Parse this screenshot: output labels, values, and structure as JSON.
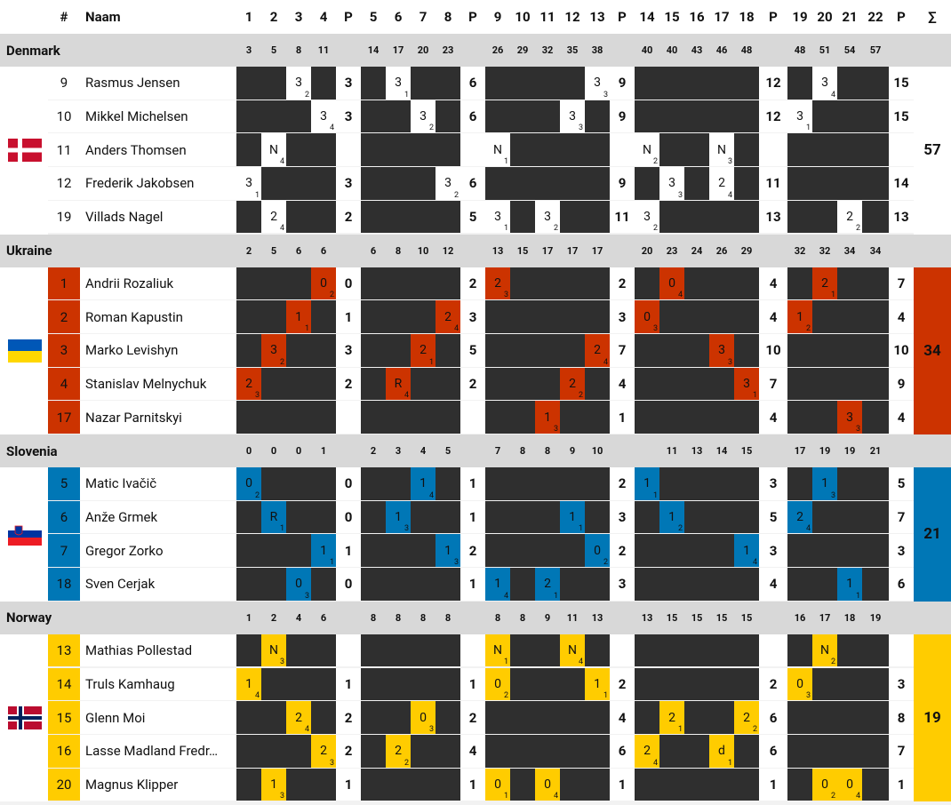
{
  "header": {
    "num_label": "#",
    "name_label": "Naam",
    "columns": [
      "1",
      "2",
      "3",
      "4",
      "P",
      "5",
      "6",
      "7",
      "8",
      "P",
      "9",
      "10",
      "11",
      "12",
      "13",
      "P",
      "14",
      "15",
      "16",
      "17",
      "18",
      "P",
      "19",
      "20",
      "21",
      "22",
      "P",
      "∑"
    ]
  },
  "teams": [
    {
      "name": "Denmark",
      "color": "#ffffff",
      "flag": "denmark-flag",
      "cumulative": [
        "3",
        "5",
        "8",
        "11",
        "",
        "14",
        "17",
        "20",
        "23",
        "",
        "26",
        "29",
        "32",
        "35",
        "38",
        "",
        "40",
        "40",
        "43",
        "46",
        "48",
        "",
        "48",
        "51",
        "54",
        "57",
        ""
      ],
      "total": "57",
      "players": [
        {
          "num": "9",
          "name": "Rasmus Jensen",
          "cells": {
            "2": [
              "3",
              "2"
            ],
            "5": [
              "3",
              "1"
            ],
            "12": [
              "3",
              "3"
            ],
            "19": [
              "3",
              "4"
            ],
            "25": [
              "3",
              "4"
            ]
          },
          "p": [
            "3",
            "6",
            "9",
            "12",
            "15"
          ]
        },
        {
          "num": "10",
          "name": "Mikkel Michelsen",
          "cells": {
            "3": [
              "3",
              "4"
            ],
            "6": [
              "3",
              "2"
            ],
            "11": [
              "3",
              "3"
            ],
            "18": [
              "3",
              "1"
            ],
            "24": [
              "3",
              "1"
            ]
          },
          "p": [
            "3",
            "6",
            "9",
            "12",
            "15"
          ]
        },
        {
          "num": "11",
          "name": "Anders Thomsen",
          "cells": {
            "1": [
              "N",
              "4"
            ],
            "8": [
              "N",
              "1"
            ],
            "13": [
              "N",
              "2"
            ],
            "16": [
              "N",
              "3"
            ],
            "22": [
              "N",
              "3"
            ]
          },
          "p": [
            "",
            "",
            "",
            "",
            ""
          ]
        },
        {
          "num": "12",
          "name": "Frederik Jakobsen",
          "cells": {
            "0": [
              "3",
              "1"
            ],
            "7": [
              "3",
              "2"
            ],
            "14": [
              "3",
              "3"
            ],
            "16": [
              "2",
              "4"
            ],
            "23": [
              "3",
              "2"
            ]
          },
          "p": [
            "3",
            "6",
            "9",
            "11",
            "14"
          ]
        },
        {
          "num": "19",
          "name": "Villads Nagel",
          "cells": {
            "1": [
              "2",
              "4"
            ],
            "8": [
              "3",
              "1"
            ],
            "10": [
              "3",
              "2"
            ],
            "13": [
              "3",
              "2"
            ],
            "20": [
              "2",
              "2"
            ]
          },
          "p": [
            "2",
            "5",
            "11",
            "13",
            "13"
          ]
        }
      ]
    },
    {
      "name": "Ukraine",
      "color": "#cc3300",
      "flag": "ukraine-flag",
      "cumulative": [
        "2",
        "5",
        "6",
        "6",
        "",
        "6",
        "8",
        "10",
        "12",
        "",
        "13",
        "15",
        "17",
        "17",
        "17",
        "",
        "20",
        "23",
        "24",
        "26",
        "29",
        "",
        "32",
        "32",
        "34",
        "34",
        ""
      ],
      "total": "34",
      "players": [
        {
          "num": "1",
          "name": "Andrii Rozaliuk",
          "cells": {
            "3": [
              "0",
              "2"
            ],
            "8": [
              "2",
              "3"
            ],
            "14": [
              "0",
              "4"
            ],
            "19": [
              "2",
              "1"
            ],
            "22": [
              "3",
              "1"
            ]
          },
          "p": [
            "0",
            "2",
            "2",
            "4",
            "7"
          ]
        },
        {
          "num": "2",
          "name": "Roman Kapustin",
          "cells": {
            "2": [
              "1",
              "1"
            ],
            "7": [
              "2",
              "4"
            ],
            "13": [
              "0",
              "3"
            ],
            "18": [
              "1",
              "2"
            ],
            "23": [
              "0",
              "4"
            ]
          },
          "p": [
            "1",
            "3",
            "3",
            "4",
            "4"
          ]
        },
        {
          "num": "3",
          "name": "Marko Levishyn",
          "cells": {
            "1": [
              "3",
              "2"
            ],
            "6": [
              "2",
              "1"
            ],
            "12": [
              "2",
              "4"
            ],
            "16": [
              "3",
              "3"
            ],
            "25": [
              "F",
              "2"
            ]
          },
          "p": [
            "3",
            "5",
            "7",
            "10",
            "10"
          ]
        },
        {
          "num": "4",
          "name": "Stanislav Melnychuk",
          "cells": {
            "0": [
              "2",
              "3"
            ],
            "5": [
              "R",
              "4"
            ],
            "11": [
              "2",
              "2"
            ],
            "17": [
              "3",
              "1"
            ],
            "24": [
              "2",
              "3"
            ]
          },
          "p": [
            "2",
            "2",
            "4",
            "7",
            "9"
          ]
        },
        {
          "num": "17",
          "name": "Nazar Parnitskyi",
          "cells": {
            "10": [
              "1",
              "3"
            ],
            "20": [
              "3",
              "3"
            ]
          },
          "p": [
            "",
            "",
            "1",
            "4",
            "4"
          ]
        }
      ]
    },
    {
      "name": "Slovenia",
      "color": "#0077b6",
      "flag": "slovenia-flag",
      "cumulative": [
        "0",
        "0",
        "0",
        "1",
        "",
        "2",
        "3",
        "4",
        "5",
        "",
        "7",
        "8",
        "8",
        "9",
        "10",
        "",
        "",
        "11",
        "13",
        "14",
        "15",
        "",
        "17",
        "19",
        "19",
        "21",
        ""
      ],
      "total": "21",
      "players": [
        {
          "num": "5",
          "name": "Matic Ivačič",
          "cells": {
            "0": [
              "0",
              "2"
            ],
            "6": [
              "1",
              "4"
            ],
            "13": [
              "1",
              "1"
            ],
            "19": [
              "1",
              "3"
            ],
            "23": [
              "2",
              "1"
            ]
          },
          "p": [
            "0",
            "1",
            "2",
            "3",
            "5"
          ]
        },
        {
          "num": "6",
          "name": "Anže Grmek",
          "cells": {
            "1": [
              "R",
              "1"
            ],
            "5": [
              "1",
              "3"
            ],
            "11": [
              "1",
              "1"
            ],
            "14": [
              "1",
              "2"
            ],
            "18": [
              "2",
              "4"
            ],
            "25": [
              "2",
              "3"
            ]
          },
          "p": [
            "0",
            "1",
            "3",
            "5",
            "7"
          ]
        },
        {
          "num": "7",
          "name": "Gregor Zorko",
          "cells": {
            "3": [
              "1",
              "1"
            ],
            "7": [
              "1",
              "3"
            ],
            "12": [
              "0",
              "2"
            ],
            "17": [
              "1",
              "4"
            ],
            "24": [
              "0",
              "4"
            ]
          },
          "p": [
            "1",
            "2",
            "2",
            "3",
            "3"
          ]
        },
        {
          "num": "18",
          "name": "Sven Cerjak",
          "cells": {
            "2": [
              "0",
              "3"
            ],
            "8": [
              "1",
              "4"
            ],
            "10": [
              "2",
              "1"
            ],
            "20": [
              "1",
              "1"
            ],
            "22": [
              "2",
              "2"
            ]
          },
          "p": [
            "0",
            "1",
            "3",
            "4",
            "6"
          ]
        }
      ]
    },
    {
      "name": "Norway",
      "color": "#ffcc00",
      "flag": "norway-flag",
      "cumulative": [
        "1",
        "2",
        "4",
        "6",
        "",
        "8",
        "8",
        "8",
        "8",
        "",
        "8",
        "8",
        "9",
        "11",
        "13",
        "",
        "13",
        "15",
        "15",
        "15",
        "15",
        "",
        "16",
        "17",
        "18",
        "19",
        ""
      ],
      "total": "19",
      "players": [
        {
          "num": "13",
          "name": "Mathias Pollestad",
          "cells": {
            "1": [
              "N",
              "3"
            ],
            "8": [
              "N",
              "1"
            ],
            "11": [
              "N",
              "4"
            ],
            "19": [
              "N",
              "2"
            ],
            "22": [
              "N",
              "4"
            ]
          },
          "p": [
            "",
            "",
            "",
            "",
            ""
          ]
        },
        {
          "num": "14",
          "name": "Truls Kamhaug",
          "cells": {
            "0": [
              "1",
              "4"
            ],
            "8": [
              "0",
              "2"
            ],
            "12": [
              "1",
              "1"
            ],
            "18": [
              "0",
              "3"
            ],
            "23": [
              "1",
              "3"
            ]
          },
          "p": [
            "1",
            "1",
            "2",
            "2",
            "3"
          ]
        },
        {
          "num": "15",
          "name": "Glenn Moi",
          "cells": {
            "2": [
              "2",
              "4"
            ],
            "6": [
              "0",
              "3"
            ],
            "14": [
              "2",
              "1"
            ],
            "17": [
              "2",
              "2"
            ],
            "22": [
              "1",
              "4"
            ],
            "24": [
              "1",
              "2"
            ]
          },
          "p": [
            "2",
            "2",
            "4",
            "6",
            "8"
          ]
        },
        {
          "num": "16",
          "name": "Lasse Madland Fredr…",
          "cells": {
            "3": [
              "2",
              "3"
            ],
            "5": [
              "2",
              "2"
            ],
            "13": [
              "2",
              "4"
            ],
            "16": [
              "d",
              "1"
            ],
            "25": [
              "1",
              "1"
            ]
          },
          "p": [
            "2",
            "4",
            "6",
            "6",
            "7"
          ]
        },
        {
          "num": "20",
          "name": "Magnus Klipper",
          "cells": {
            "1": [
              "1",
              "3"
            ],
            "8": [
              "0",
              "1"
            ],
            "10": [
              "0",
              "4"
            ],
            "19": [
              "0",
              "2"
            ],
            "20": [
              "0",
              "4"
            ]
          },
          "p": [
            "1",
            "1",
            "1",
            "1",
            "1"
          ]
        }
      ]
    }
  ]
}
